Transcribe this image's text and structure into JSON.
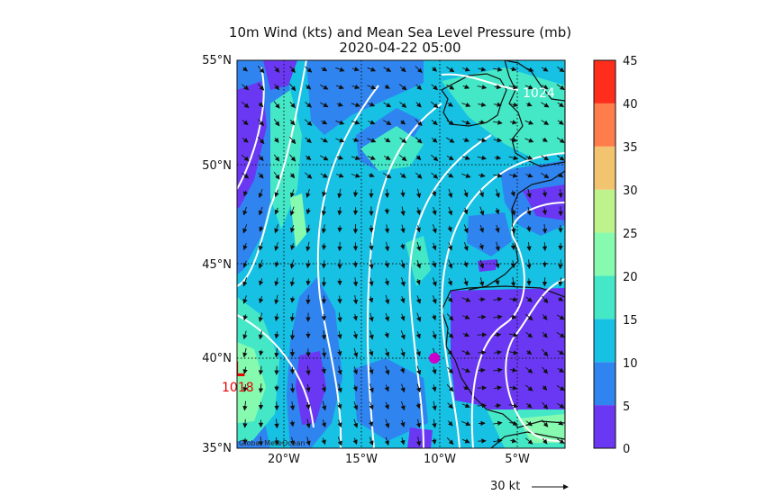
{
  "title": {
    "line1": "10m Wind (kts) and Mean Sea Level Pressure (mb)",
    "line2": "2020-04-22 05:00"
  },
  "map": {
    "lat_labels": [
      "55°N",
      "50°N",
      "45°N",
      "40°N",
      "35°N"
    ],
    "lon_labels": [
      "20°W",
      "15°W",
      "10°W",
      "5°W"
    ],
    "lat_range": [
      35,
      55
    ],
    "lon_range": [
      -23,
      -2
    ],
    "credit": "Global MeteOcean",
    "isobar_label_high": "1024",
    "low_label": "L",
    "low_value": "1018",
    "marker_color": "#cc00cc",
    "isobar_color": "#ffffff"
  },
  "colorbar": {
    "ticks": [
      "45",
      "40",
      "35",
      "30",
      "25",
      "20",
      "15",
      "10",
      "5",
      "0"
    ],
    "levels": [
      {
        "from": 0,
        "to": 5,
        "color": "#6a38f2"
      },
      {
        "from": 5,
        "to": 10,
        "color": "#2f84f0"
      },
      {
        "from": 10,
        "to": 15,
        "color": "#16c1e4"
      },
      {
        "from": 15,
        "to": 20,
        "color": "#45e8c6"
      },
      {
        "from": 20,
        "to": 25,
        "color": "#86fbb0"
      },
      {
        "from": 25,
        "to": 30,
        "color": "#bdf28c"
      },
      {
        "from": 30,
        "to": 35,
        "color": "#f2c46f"
      },
      {
        "from": 35,
        "to": 40,
        "color": "#ff7d4a"
      },
      {
        "from": 40,
        "to": 45,
        "color": "#ff2d1b"
      }
    ]
  },
  "reference_vector": {
    "label": "30 kt"
  }
}
